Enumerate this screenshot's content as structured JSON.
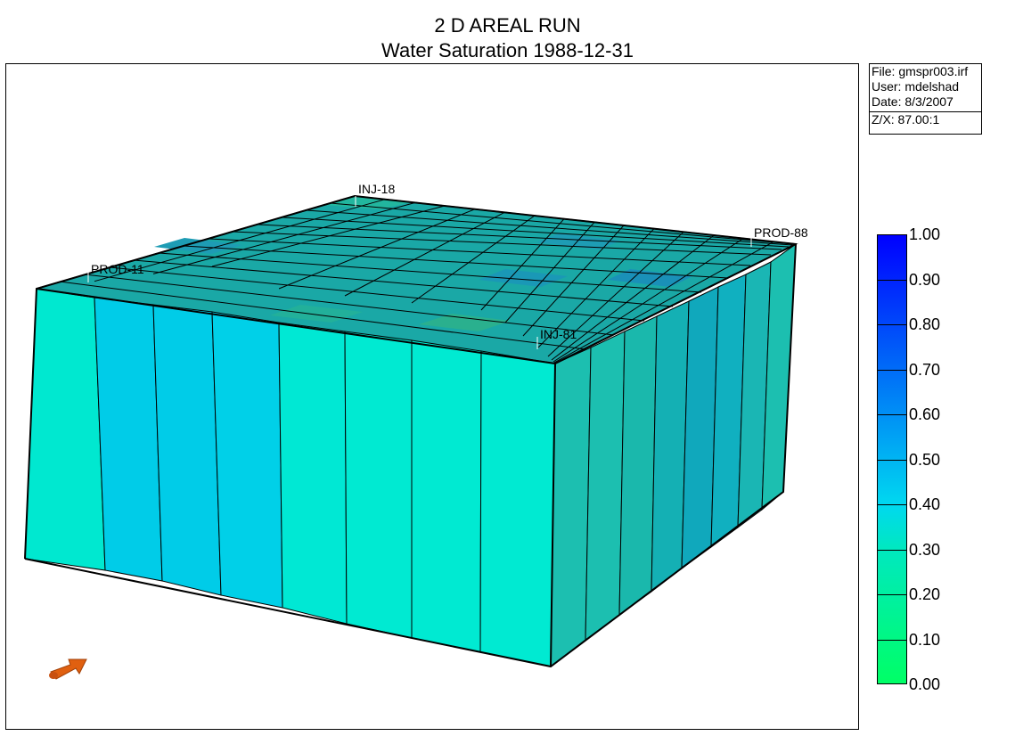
{
  "title": "2 D AREAL RUN",
  "subtitle": "Water Saturation 1988-12-31",
  "info": {
    "file": "File: gmspr003.irf",
    "user": "User:  mdelshad",
    "date": "Date: 8/3/2007",
    "zx": "Z/X: 87.00:1"
  },
  "wells": [
    {
      "name": "INJ-18"
    },
    {
      "name": "PROD-11"
    },
    {
      "name": "PROD-88"
    },
    {
      "name": "INJ-81"
    }
  ],
  "legend": {
    "labels": [
      "1.00",
      "0.90",
      "0.80",
      "0.70",
      "0.60",
      "0.50",
      "0.40",
      "0.30",
      "0.20",
      "0.10",
      "0.00"
    ]
  },
  "colors": {
    "top_face": "#1aa8a6",
    "front_face": "#00e8d0",
    "side_face": "#1cbfb0",
    "high_saturation": "#00c8e8",
    "axis_arrow": "#e06010",
    "outline": "#000000"
  }
}
